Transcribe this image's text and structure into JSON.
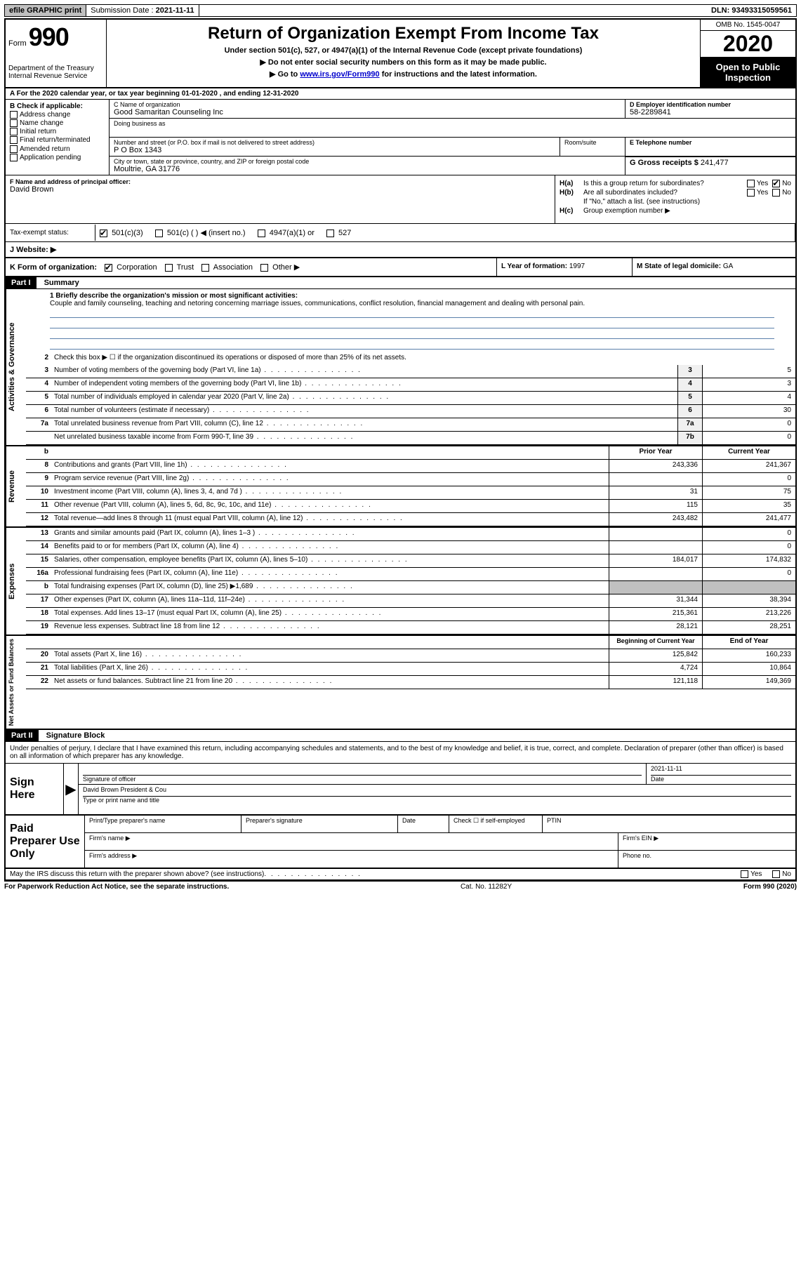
{
  "top": {
    "efile": "efile GRAPHIC print",
    "submission_label": "Submission Date : ",
    "submission_date": "2021-11-11",
    "dln_label": "DLN: ",
    "dln": "93493315059561"
  },
  "header": {
    "form_label": "Form",
    "form_number": "990",
    "dept": "Department of the Treasury\nInternal Revenue Service",
    "title": "Return of Organization Exempt From Income Tax",
    "sub1": "Under section 501(c), 527, or 4947(a)(1) of the Internal Revenue Code (except private foundations)",
    "sub2": "▶ Do not enter social security numbers on this form as it may be made public.",
    "sub3_pre": "▶ Go to ",
    "sub3_link": "www.irs.gov/Form990",
    "sub3_post": " for instructions and the latest information.",
    "omb": "OMB No. 1545-0047",
    "year": "2020",
    "open": "Open to Public Inspection"
  },
  "rowA": "A For the 2020 calendar year, or tax year beginning 01-01-2020   , and ending 12-31-2020",
  "B": {
    "title": "B Check if applicable:",
    "opts": [
      "Address change",
      "Name change",
      "Initial return",
      "Final return/terminated",
      "Amended return",
      "Application pending"
    ]
  },
  "C": {
    "name_label": "C Name of organization",
    "name": "Good Samaritan Counseling Inc",
    "dba_label": "Doing business as",
    "addr_label": "Number and street (or P.O. box if mail is not delivered to street address)",
    "addr": "P O Box 1343",
    "room_label": "Room/suite",
    "city_label": "City or town, state or province, country, and ZIP or foreign postal code",
    "city": "Moultrie, GA  31776"
  },
  "D": {
    "label": "D Employer identification number",
    "value": "58-2289841"
  },
  "E": {
    "label": "E Telephone number",
    "value": ""
  },
  "G": {
    "label": "G Gross receipts $ ",
    "value": "241,477"
  },
  "F": {
    "label": "F  Name and address of principal officer:",
    "value": "David Brown"
  },
  "H": {
    "a_label": "H(a)",
    "a_txt": "Is this a group return for subordinates?",
    "a_yes": "Yes",
    "a_no": "No",
    "b_label": "H(b)",
    "b_txt": "Are all subordinates included?",
    "b_note": "If \"No,\" attach a list. (see instructions)",
    "c_label": "H(c)",
    "c_txt": "Group exemption number ▶"
  },
  "I": {
    "label": "Tax-exempt status:",
    "opts": [
      "501(c)(3)",
      "501(c) (  ) ◀ (insert no.)",
      "4947(a)(1) or",
      "527"
    ]
  },
  "J": {
    "label": "J   Website: ▶"
  },
  "K": {
    "label": "K Form of organization:",
    "opts": [
      "Corporation",
      "Trust",
      "Association",
      "Other ▶"
    ]
  },
  "L": {
    "label": "L Year of formation: ",
    "value": "1997"
  },
  "M": {
    "label": "M State of legal domicile: ",
    "value": "GA"
  },
  "part1": {
    "num": "Part I",
    "title": "Summary"
  },
  "mission": {
    "label": "1  Briefly describe the organization's mission or most significant activities:",
    "text": "Couple and family counseling, teaching and netoring concerning marriage issues, communications, conflict resolution, financial management and dealing with personal pain."
  },
  "line2": "Check this box ▶ ☐  if the organization discontinued its operations or disposed of more than 25% of its net assets.",
  "gov_lines": [
    {
      "n": "3",
      "t": "Number of voting members of the governing body (Part VI, line 1a)",
      "box": "3",
      "v": "5"
    },
    {
      "n": "4",
      "t": "Number of independent voting members of the governing body (Part VI, line 1b)",
      "box": "4",
      "v": "3"
    },
    {
      "n": "5",
      "t": "Total number of individuals employed in calendar year 2020 (Part V, line 2a)",
      "box": "5",
      "v": "4"
    },
    {
      "n": "6",
      "t": "Total number of volunteers (estimate if necessary)",
      "box": "6",
      "v": "30"
    },
    {
      "n": "7a",
      "t": "Total unrelated business revenue from Part VIII, column (C), line 12",
      "box": "7a",
      "v": "0"
    },
    {
      "n": "",
      "t": "Net unrelated business taxable income from Form 990-T, line 39",
      "box": "7b",
      "v": "0"
    }
  ],
  "two_col_hdr": {
    "prior": "Prior Year",
    "current": "Current Year"
  },
  "revenue": [
    {
      "n": "8",
      "t": "Contributions and grants (Part VIII, line 1h)",
      "p": "243,336",
      "c": "241,367"
    },
    {
      "n": "9",
      "t": "Program service revenue (Part VIII, line 2g)",
      "p": "",
      "c": "0"
    },
    {
      "n": "10",
      "t": "Investment income (Part VIII, column (A), lines 3, 4, and 7d )",
      "p": "31",
      "c": "75"
    },
    {
      "n": "11",
      "t": "Other revenue (Part VIII, column (A), lines 5, 6d, 8c, 9c, 10c, and 11e)",
      "p": "115",
      "c": "35"
    },
    {
      "n": "12",
      "t": "Total revenue—add lines 8 through 11 (must equal Part VIII, column (A), line 12)",
      "p": "243,482",
      "c": "241,477"
    }
  ],
  "expenses": [
    {
      "n": "13",
      "t": "Grants and similar amounts paid (Part IX, column (A), lines 1–3 )",
      "p": "",
      "c": "0"
    },
    {
      "n": "14",
      "t": "Benefits paid to or for members (Part IX, column (A), line 4)",
      "p": "",
      "c": "0"
    },
    {
      "n": "15",
      "t": "Salaries, other compensation, employee benefits (Part IX, column (A), lines 5–10)",
      "p": "184,017",
      "c": "174,832"
    },
    {
      "n": "16a",
      "t": "Professional fundraising fees (Part IX, column (A), line 11e)",
      "p": "",
      "c": "0"
    },
    {
      "n": "b",
      "t": "Total fundraising expenses (Part IX, column (D), line 25) ▶1,689",
      "p": "SHADE",
      "c": "SHADE"
    },
    {
      "n": "17",
      "t": "Other expenses (Part IX, column (A), lines 11a–11d, 11f–24e)",
      "p": "31,344",
      "c": "38,394"
    },
    {
      "n": "18",
      "t": "Total expenses. Add lines 13–17 (must equal Part IX, column (A), line 25)",
      "p": "215,361",
      "c": "213,226"
    },
    {
      "n": "19",
      "t": "Revenue less expenses. Subtract line 18 from line 12",
      "p": "28,121",
      "c": "28,251"
    }
  ],
  "net_hdr": {
    "begin": "Beginning of Current Year",
    "end": "End of Year"
  },
  "net": [
    {
      "n": "20",
      "t": "Total assets (Part X, line 16)",
      "p": "125,842",
      "c": "160,233"
    },
    {
      "n": "21",
      "t": "Total liabilities (Part X, line 26)",
      "p": "4,724",
      "c": "10,864"
    },
    {
      "n": "22",
      "t": "Net assets or fund balances. Subtract line 21 from line 20",
      "p": "121,118",
      "c": "149,369"
    }
  ],
  "part2": {
    "num": "Part II",
    "title": "Signature Block"
  },
  "sig_intro": "Under penalties of perjury, I declare that I have examined this return, including accompanying schedules and statements, and to the best of my knowledge and belief, it is true, correct, and complete. Declaration of preparer (other than officer) is based on all information of which preparer has any knowledge.",
  "sign": {
    "label": "Sign Here",
    "sig_of": "Signature of officer",
    "date_label": "Date",
    "date": "2021-11-11",
    "name_title": "David Brown  President & Cou",
    "type_label": "Type or print name and title"
  },
  "prep": {
    "label": "Paid Preparer Use Only",
    "c1": "Print/Type preparer's name",
    "c2": "Preparer's signature",
    "c3": "Date",
    "c4a": "Check ☐ if self-employed",
    "c5": "PTIN",
    "firm_name": "Firm's name    ▶",
    "firm_ein": "Firm's EIN ▶",
    "firm_addr": "Firm's address ▶",
    "phone": "Phone no."
  },
  "discuss": {
    "txt": "May the IRS discuss this return with the preparer shown above? (see instructions)",
    "yes": "Yes",
    "no": "No"
  },
  "footer": {
    "left": "For Paperwork Reduction Act Notice, see the separate instructions.",
    "mid": "Cat. No. 11282Y",
    "right": "Form 990 (2020)"
  },
  "side_labels": {
    "gov": "Activities & Governance",
    "rev": "Revenue",
    "exp": "Expenses",
    "net": "Net Assets or Fund Balances"
  }
}
